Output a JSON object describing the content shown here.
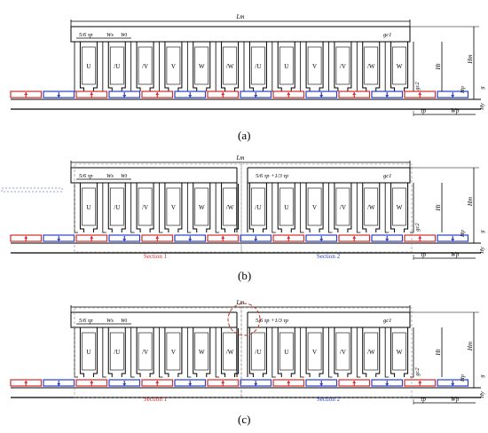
{
  "colors": {
    "line": "#000000",
    "red": "#d62c2c",
    "blue": "#2a3fc8",
    "dash": "#888888",
    "circle": "#c0392b"
  },
  "slot_labels": [
    "U",
    "/U",
    "/V",
    "V",
    "W",
    "/W",
    "/U",
    "U",
    "V",
    "/V",
    "/W",
    "W"
  ],
  "annot": {
    "Lm": "Lm",
    "pitch_56": "5/6 τp",
    "ws": "Ws",
    "wt": "Wt",
    "gc1": "gc1",
    "gc2": "gc2",
    "Ht": "Ht",
    "Hm": "Hm",
    "Hp": "Hp",
    "g": "g",
    "tau_p": "τp",
    "Wp": "Wp",
    "Hy": "Hy",
    "gap_pitch": "5/6 τp +1/3 τp"
  },
  "sections": {
    "s1": "Section 1",
    "s2": "Section 2"
  },
  "captions": {
    "a": "(a)",
    "b": "(b)",
    "c": "(c)"
  }
}
